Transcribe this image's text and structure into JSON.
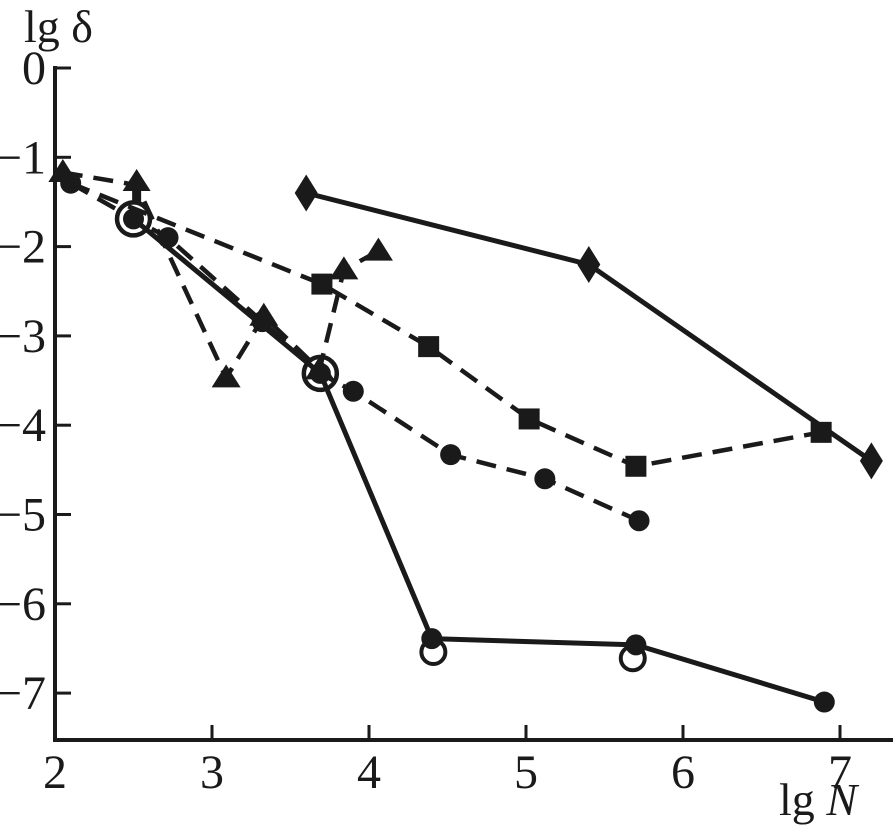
{
  "figure": {
    "background": "#ffffff",
    "ink_color": "#1a1a1a"
  },
  "chart_data": {
    "type": "line",
    "title": "",
    "xlabel": "lg N",
    "ylabel": "lg δ",
    "xlabel_prefix": "lg ",
    "xlabel_symbol": "N",
    "ylabel_prefix": "lg ",
    "ylabel_symbol": "δ",
    "xlim": [
      2,
      7.33
    ],
    "ylim": [
      -7.52,
      0
    ],
    "grid": false,
    "legend": "none",
    "x_ticks": [
      {
        "v": 2,
        "label": "2",
        "tick": false
      },
      {
        "v": 3,
        "label": "3",
        "tick": true
      },
      {
        "v": 4,
        "label": "4",
        "tick": true
      },
      {
        "v": 5,
        "label": "5",
        "tick": true
      },
      {
        "v": 6,
        "label": "6",
        "tick": true
      },
      {
        "v": 7,
        "label": "7",
        "tick": true
      }
    ],
    "y_ticks": [
      {
        "v": 0,
        "label": "0"
      },
      {
        "v": -1,
        "label": "−1"
      },
      {
        "v": -2,
        "label": "−2"
      },
      {
        "v": -3,
        "label": "−3"
      },
      {
        "v": -4,
        "label": "−4"
      },
      {
        "v": -5,
        "label": "−5"
      },
      {
        "v": -6,
        "label": "−6"
      },
      {
        "v": -7,
        "label": "−7"
      }
    ],
    "series": [
      {
        "name": "diamonds-solid",
        "marker": "diamond",
        "line": "solid",
        "points": [
          [
            3.6,
            -1.4
          ],
          [
            5.4,
            -2.2
          ],
          [
            7.2,
            -4.4
          ]
        ]
      },
      {
        "name": "squares-dashed",
        "marker": "square",
        "line": "dashed",
        "points": [
          [
            2.1,
            -1.29,
            "none"
          ],
          [
            3.7,
            -2.42
          ],
          [
            4.38,
            -3.12
          ],
          [
            5.02,
            -3.93
          ],
          [
            5.7,
            -4.46
          ],
          [
            6.88,
            -4.08
          ]
        ]
      },
      {
        "name": "triangles-dashed",
        "marker": "triangle",
        "line": "dashed",
        "points": [
          [
            2.05,
            -1.17
          ],
          [
            2.52,
            -1.31,
            "arrow"
          ],
          [
            3.09,
            -3.47
          ],
          [
            3.33,
            -2.78
          ],
          [
            3.685,
            -3.38
          ],
          [
            3.84,
            -2.26
          ],
          [
            4.06,
            -2.05
          ]
        ]
      },
      {
        "name": "circles-dashed",
        "marker": "circle",
        "line": "dashed",
        "points": [
          [
            2.1,
            -1.29
          ],
          [
            2.5,
            -1.69
          ],
          [
            2.72,
            -1.9
          ],
          [
            3.32,
            -2.84
          ],
          [
            3.69,
            -3.42
          ],
          [
            3.9,
            -3.62
          ],
          [
            4.52,
            -4.33
          ],
          [
            5.12,
            -4.6
          ],
          [
            5.72,
            -5.07
          ]
        ]
      },
      {
        "name": "circles-solid",
        "marker": "circle",
        "line": "solid",
        "points": [
          [
            2.5,
            -1.69,
            "none"
          ],
          [
            3.69,
            -3.42,
            "none"
          ],
          [
            4.4,
            -6.39
          ],
          [
            5.7,
            -6.46
          ],
          [
            6.9,
            -7.1
          ]
        ]
      }
    ],
    "highlight_rings": [
      {
        "x": 2.5,
        "y": -1.69,
        "r": 16.5,
        "sw": 4.5
      },
      {
        "x": 3.69,
        "y": -3.42,
        "r": 16.5,
        "sw": 4.5
      },
      {
        "x": 4.41,
        "y": -6.54,
        "r": 12,
        "sw": 4
      },
      {
        "x": 5.68,
        "y": -6.61,
        "r": 12,
        "sw": 4
      }
    ]
  }
}
